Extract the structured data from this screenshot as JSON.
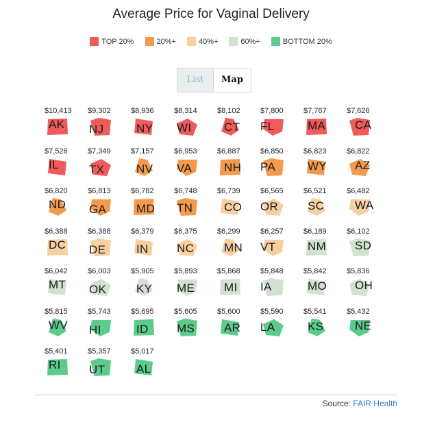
{
  "chart_data": {
    "type": "tile-grid",
    "title": "Average Price for Vaginal Delivery",
    "legend": [
      {
        "label": "TOP 20%",
        "color": "#ef5a5a"
      },
      {
        "label": "20%+",
        "color": "#f49a4e"
      },
      {
        "label": "40%+",
        "color": "#f8cfa0"
      },
      {
        "label": "60%+",
        "color": "#cfe3cf"
      },
      {
        "label": "BOTTOM 20%",
        "color": "#5ccc8c"
      }
    ],
    "states": [
      {
        "abbr": "AK",
        "price": "$10,413",
        "value": 10413,
        "tier": 0
      },
      {
        "abbr": "NJ",
        "price": "$9,302",
        "value": 9302,
        "tier": 0
      },
      {
        "abbr": "NY",
        "price": "$8,936",
        "value": 8936,
        "tier": 0
      },
      {
        "abbr": "WI",
        "price": "$8,314",
        "value": 8314,
        "tier": 0
      },
      {
        "abbr": "CT",
        "price": "$8,102",
        "value": 8102,
        "tier": 0
      },
      {
        "abbr": "FL",
        "price": "$7,800",
        "value": 7800,
        "tier": 0
      },
      {
        "abbr": "MA",
        "price": "$7,767",
        "value": 7767,
        "tier": 0
      },
      {
        "abbr": "CA",
        "price": "$7,626",
        "value": 7626,
        "tier": 0
      },
      {
        "abbr": "IL",
        "price": "$7,526",
        "value": 7526,
        "tier": 0
      },
      {
        "abbr": "TX",
        "price": "$7,349",
        "value": 7349,
        "tier": 0
      },
      {
        "abbr": "NV",
        "price": "$7,157",
        "value": 7157,
        "tier": 1
      },
      {
        "abbr": "VA",
        "price": "$6,953",
        "value": 6953,
        "tier": 1
      },
      {
        "abbr": "NH",
        "price": "$6,887",
        "value": 6887,
        "tier": 1
      },
      {
        "abbr": "PA",
        "price": "$6,850",
        "value": 6850,
        "tier": 1
      },
      {
        "abbr": "WY",
        "price": "$6,823",
        "value": 6823,
        "tier": 1
      },
      {
        "abbr": "AZ",
        "price": "$6,822",
        "value": 6822,
        "tier": 1
      },
      {
        "abbr": "ND",
        "price": "$6,820",
        "value": 6820,
        "tier": 1
      },
      {
        "abbr": "GA",
        "price": "$6,813",
        "value": 6813,
        "tier": 1
      },
      {
        "abbr": "MD",
        "price": "$6,782",
        "value": 6782,
        "tier": 1
      },
      {
        "abbr": "TN",
        "price": "$6,748",
        "value": 6748,
        "tier": 1
      },
      {
        "abbr": "CO",
        "price": "$6,739",
        "value": 6739,
        "tier": 2
      },
      {
        "abbr": "OR",
        "price": "$6,565",
        "value": 6565,
        "tier": 2
      },
      {
        "abbr": "SC",
        "price": "$6,521",
        "value": 6521,
        "tier": 2
      },
      {
        "abbr": "WA",
        "price": "$6,482",
        "value": 6482,
        "tier": 2
      },
      {
        "abbr": "DC",
        "price": "$6,388",
        "value": 6388,
        "tier": 2
      },
      {
        "abbr": "DE",
        "price": "$6,388",
        "value": 6388,
        "tier": 2
      },
      {
        "abbr": "IN",
        "price": "$6,379",
        "value": 6379,
        "tier": 2
      },
      {
        "abbr": "NC",
        "price": "$6,375",
        "value": 6375,
        "tier": 2
      },
      {
        "abbr": "MN",
        "price": "$6,299",
        "value": 6299,
        "tier": 2
      },
      {
        "abbr": "VT",
        "price": "$6,257",
        "value": 6257,
        "tier": 2
      },
      {
        "abbr": "NM",
        "price": "$6,189",
        "value": 6189,
        "tier": 3
      },
      {
        "abbr": "SD",
        "price": "$6,102",
        "value": 6102,
        "tier": 3
      },
      {
        "abbr": "MT",
        "price": "$6,042",
        "value": 6042,
        "tier": 3
      },
      {
        "abbr": "OK",
        "price": "$6,003",
        "value": 6003,
        "tier": 3
      },
      {
        "abbr": "KY",
        "price": "$5,905",
        "value": 5905,
        "tier": 3
      },
      {
        "abbr": "ME",
        "price": "$5,893",
        "value": 5893,
        "tier": 3
      },
      {
        "abbr": "MI",
        "price": "$5,868",
        "value": 5868,
        "tier": 3
      },
      {
        "abbr": "IA",
        "price": "$5,848",
        "value": 5848,
        "tier": 3
      },
      {
        "abbr": "MO",
        "price": "$5,842",
        "value": 5842,
        "tier": 3
      },
      {
        "abbr": "OH",
        "price": "$5,836",
        "value": 5836,
        "tier": 3
      },
      {
        "abbr": "WV",
        "price": "$5,815",
        "value": 5815,
        "tier": 4
      },
      {
        "abbr": "HI",
        "price": "$5,743",
        "value": 5743,
        "tier": 4
      },
      {
        "abbr": "ID",
        "price": "$5,695",
        "value": 5695,
        "tier": 4
      },
      {
        "abbr": "MS",
        "price": "$5,605",
        "value": 5605,
        "tier": 4
      },
      {
        "abbr": "AR",
        "price": "$5,600",
        "value": 5600,
        "tier": 4
      },
      {
        "abbr": "LA",
        "price": "$5,590",
        "value": 5590,
        "tier": 4
      },
      {
        "abbr": "KS",
        "price": "$5,541",
        "value": 5541,
        "tier": 4
      },
      {
        "abbr": "NE",
        "price": "$5,432",
        "value": 5432,
        "tier": 4
      },
      {
        "abbr": "RI",
        "price": "$5,401",
        "value": 5401,
        "tier": 4
      },
      {
        "abbr": "UT",
        "price": "$5,357",
        "value": 5357,
        "tier": 4
      },
      {
        "abbr": "AL",
        "price": "$5,017",
        "value": 5017,
        "tier": 4
      }
    ]
  },
  "toggle": {
    "list_label": "List",
    "map_label": "Map",
    "selected": "Map"
  },
  "footer": {
    "source_prefix": "Source: ",
    "source_link": "FAIR Health"
  }
}
